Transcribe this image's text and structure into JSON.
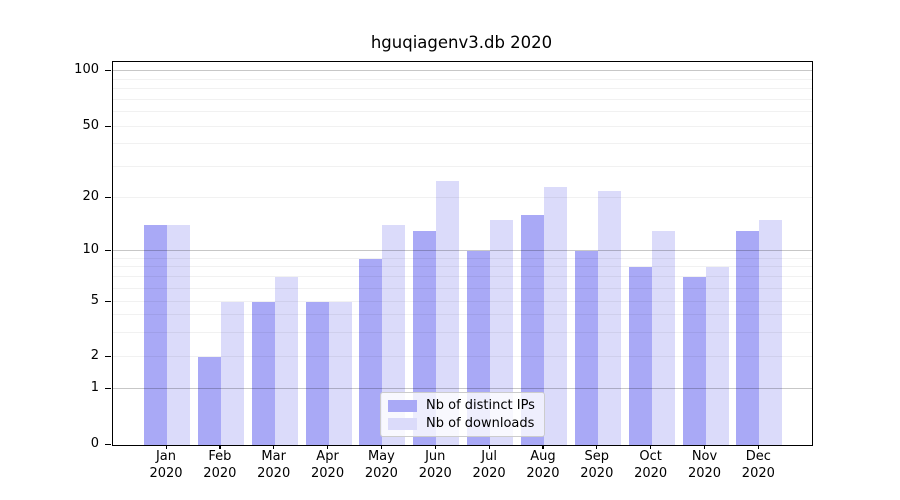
{
  "chart_data": {
    "type": "bar",
    "title": "hguqiagenv3.db 2020",
    "categories": [
      "Jan",
      "Feb",
      "Mar",
      "Apr",
      "May",
      "Jun",
      "Jul",
      "Aug",
      "Sep",
      "Oct",
      "Nov",
      "Dec"
    ],
    "category_year": "2020",
    "series": [
      {
        "name": "Nb of distinct IPs",
        "color": "#a9a9f6",
        "values": [
          14,
          2,
          5,
          5,
          9,
          13,
          10,
          16,
          10,
          8,
          7,
          13
        ]
      },
      {
        "name": "Nb of downloads",
        "color": "#dbdbfa",
        "values": [
          14,
          5,
          7,
          5,
          14,
          25,
          15,
          23,
          22,
          13,
          8,
          15
        ]
      }
    ],
    "yaxis": {
      "scale": "symlog",
      "tick_values": [
        0,
        1,
        2,
        5,
        10,
        20,
        50,
        100
      ],
      "tick_labels": [
        "0",
        "1",
        "2",
        "5",
        "10",
        "20",
        "50",
        "100"
      ],
      "major_gridlines": [
        1,
        10,
        100
      ],
      "minor_gridlines": [
        2,
        3,
        4,
        5,
        6,
        7,
        8,
        9,
        20,
        30,
        40,
        50,
        60,
        70,
        80,
        90
      ],
      "ylim": [
        0,
        112
      ]
    },
    "xlabel": "",
    "ylabel": "",
    "grid": true,
    "legend": {
      "position": "lower center"
    }
  }
}
